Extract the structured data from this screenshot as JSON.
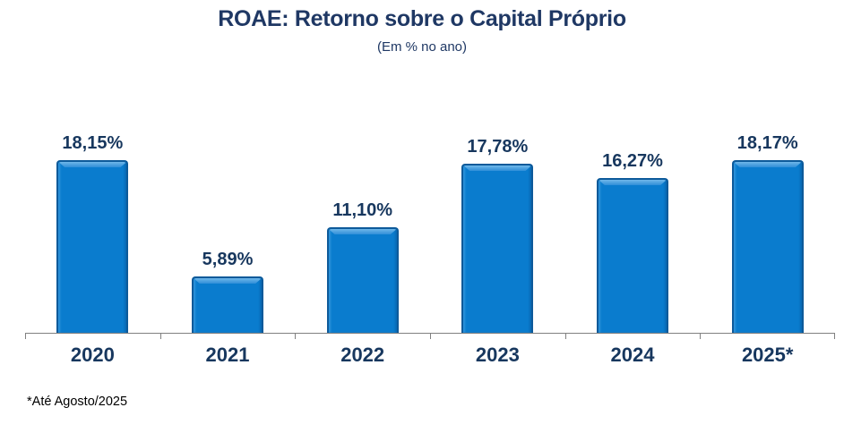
{
  "title": "ROAE: Retorno sobre o Capital Próprio",
  "subtitle": "(Em % no ano)",
  "footnote": "*Até Agosto/2025",
  "colors": {
    "bar_fill": "#0A7CCE",
    "bar_border": "#0D5A9A",
    "bar_highlight": "#6FB7E9",
    "title_text": "#1F3864",
    "label_text": "#17375E",
    "axis_line": "#808080",
    "footnote_text": "#000000",
    "background": "#FFFFFF"
  },
  "chart_data": {
    "type": "bar",
    "title": "ROAE: Retorno sobre o Capital Próprio",
    "subtitle": "(Em % no ano)",
    "categories": [
      "2020",
      "2021",
      "2022",
      "2023",
      "2024",
      "2025*"
    ],
    "values": [
      18.15,
      5.89,
      11.1,
      17.78,
      16.27,
      18.17
    ],
    "value_labels": [
      "18,15%",
      "5,89%",
      "11,10%",
      "17,78%",
      "16,27%",
      "18,17%"
    ],
    "xlabel": "",
    "ylabel": "",
    "ylim": [
      0,
      19.5
    ],
    "grid": false,
    "legend": false,
    "data_labels_position": "above-bar",
    "footnote": "*Até Agosto/2025"
  }
}
